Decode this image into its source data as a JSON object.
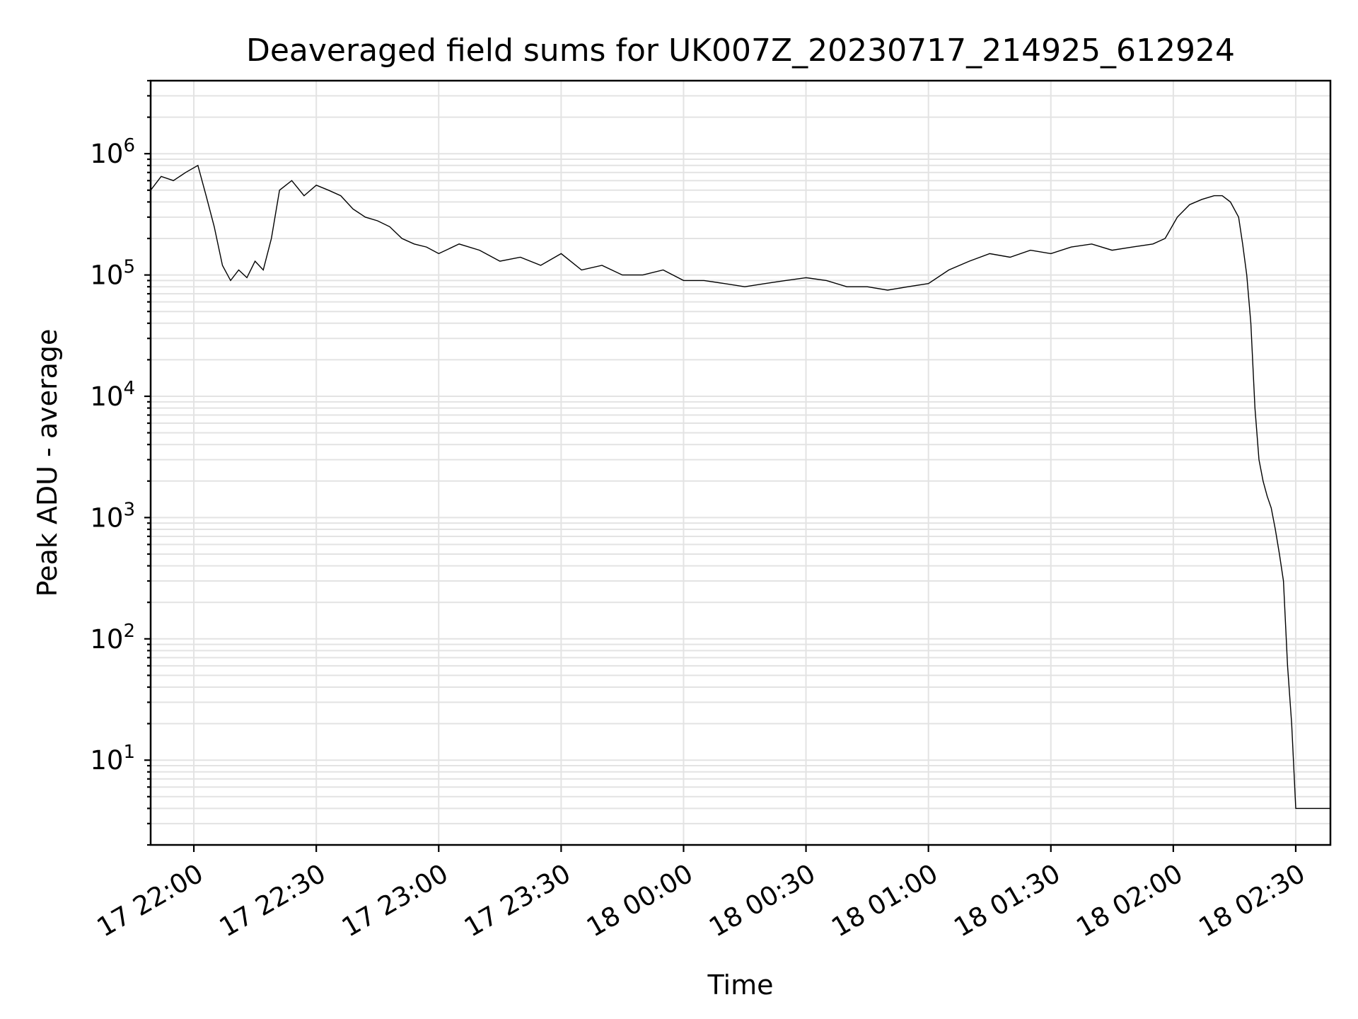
{
  "chart_data": {
    "type": "line",
    "title": "Deaveraged field sums for UK007Z_20230717_214925_612924",
    "xlabel": "Time",
    "ylabel": "Peak ADU - average",
    "yscale": "log",
    "ylim": [
      2,
      4000000
    ],
    "xlim": [
      "2023-07-17 21:49:25",
      "2023-07-18 02:38:30"
    ],
    "grid": true,
    "x_ticks": [
      {
        "time": "2023-07-17 22:00",
        "label": "17 22:00"
      },
      {
        "time": "2023-07-17 22:30",
        "label": "17 22:30"
      },
      {
        "time": "2023-07-17 23:00",
        "label": "17 23:00"
      },
      {
        "time": "2023-07-17 23:30",
        "label": "17 23:30"
      },
      {
        "time": "2023-07-18 00:00",
        "label": "18 00:00"
      },
      {
        "time": "2023-07-18 00:30",
        "label": "18 00:30"
      },
      {
        "time": "2023-07-18 01:00",
        "label": "18 01:00"
      },
      {
        "time": "2023-07-18 01:30",
        "label": "18 01:30"
      },
      {
        "time": "2023-07-18 02:00",
        "label": "18 02:00"
      },
      {
        "time": "2023-07-18 02:30",
        "label": "18 02:30"
      }
    ],
    "y_ticks": [
      {
        "value": 10,
        "base": "10",
        "exp": "1"
      },
      {
        "value": 100,
        "base": "10",
        "exp": "2"
      },
      {
        "value": 1000,
        "base": "10",
        "exp": "3"
      },
      {
        "value": 10000,
        "base": "10",
        "exp": "4"
      },
      {
        "value": 100000,
        "base": "10",
        "exp": "5"
      },
      {
        "value": 1000000,
        "base": "10",
        "exp": "6"
      }
    ],
    "series": [
      {
        "color": "#000000",
        "x": [
          "2023-07-17 21:49:25",
          "2023-07-17 21:52:00",
          "2023-07-17 21:55:00",
          "2023-07-17 21:58:00",
          "2023-07-17 22:01:00",
          "2023-07-17 22:03:00",
          "2023-07-17 22:05:00",
          "2023-07-17 22:07:00",
          "2023-07-17 22:09:00",
          "2023-07-17 22:11:00",
          "2023-07-17 22:13:00",
          "2023-07-17 22:15:00",
          "2023-07-17 22:17:00",
          "2023-07-17 22:19:00",
          "2023-07-17 22:21:00",
          "2023-07-17 22:24:00",
          "2023-07-17 22:27:00",
          "2023-07-17 22:30:00",
          "2023-07-17 22:33:00",
          "2023-07-17 22:36:00",
          "2023-07-17 22:39:00",
          "2023-07-17 22:42:00",
          "2023-07-17 22:45:00",
          "2023-07-17 22:48:00",
          "2023-07-17 22:51:00",
          "2023-07-17 22:54:00",
          "2023-07-17 22:57:00",
          "2023-07-17 23:00:00",
          "2023-07-17 23:05:00",
          "2023-07-17 23:10:00",
          "2023-07-17 23:15:00",
          "2023-07-17 23:20:00",
          "2023-07-17 23:25:00",
          "2023-07-17 23:30:00",
          "2023-07-17 23:35:00",
          "2023-07-17 23:40:00",
          "2023-07-17 23:45:00",
          "2023-07-17 23:50:00",
          "2023-07-17 23:55:00",
          "2023-07-18 00:00:00",
          "2023-07-18 00:05:00",
          "2023-07-18 00:10:00",
          "2023-07-18 00:15:00",
          "2023-07-18 00:20:00",
          "2023-07-18 00:25:00",
          "2023-07-18 00:30:00",
          "2023-07-18 00:35:00",
          "2023-07-18 00:40:00",
          "2023-07-18 00:45:00",
          "2023-07-18 00:50:00",
          "2023-07-18 00:55:00",
          "2023-07-18 01:00:00",
          "2023-07-18 01:05:00",
          "2023-07-18 01:10:00",
          "2023-07-18 01:15:00",
          "2023-07-18 01:20:00",
          "2023-07-18 01:25:00",
          "2023-07-18 01:30:00",
          "2023-07-18 01:35:00",
          "2023-07-18 01:40:00",
          "2023-07-18 01:45:00",
          "2023-07-18 01:50:00",
          "2023-07-18 01:55:00",
          "2023-07-18 01:58:00",
          "2023-07-18 02:01:00",
          "2023-07-18 02:04:00",
          "2023-07-18 02:07:00",
          "2023-07-18 02:10:00",
          "2023-07-18 02:12:00",
          "2023-07-18 02:14:00",
          "2023-07-18 02:16:00",
          "2023-07-18 02:17:00",
          "2023-07-18 02:18:00",
          "2023-07-18 02:19:00",
          "2023-07-18 02:20:00",
          "2023-07-18 02:21:00",
          "2023-07-18 02:22:00",
          "2023-07-18 02:23:00",
          "2023-07-18 02:24:00",
          "2023-07-18 02:25:00",
          "2023-07-18 02:26:00",
          "2023-07-18 02:27:00",
          "2023-07-18 02:28:00",
          "2023-07-18 02:29:00",
          "2023-07-18 02:30:00",
          "2023-07-18 02:30:30",
          "2023-07-18 02:31:00",
          "2023-07-18 02:34:00",
          "2023-07-18 02:38:30"
        ],
        "y": [
          500000,
          650000,
          600000,
          700000,
          800000,
          450000,
          250000,
          120000,
          90000,
          110000,
          95000,
          130000,
          110000,
          200000,
          500000,
          600000,
          450000,
          550000,
          500000,
          450000,
          350000,
          300000,
          280000,
          250000,
          200000,
          180000,
          170000,
          150000,
          180000,
          160000,
          130000,
          140000,
          120000,
          150000,
          110000,
          120000,
          100000,
          100000,
          110000,
          90000,
          90000,
          85000,
          80000,
          85000,
          90000,
          95000,
          90000,
          80000,
          80000,
          75000,
          80000,
          85000,
          110000,
          130000,
          150000,
          140000,
          160000,
          150000,
          170000,
          180000,
          160000,
          170000,
          180000,
          200000,
          300000,
          380000,
          420000,
          450000,
          450000,
          400000,
          300000,
          180000,
          100000,
          40000,
          8000,
          3000,
          2000,
          1500,
          1200,
          800,
          500,
          300,
          60,
          20,
          4,
          4,
          4,
          4,
          4
        ]
      }
    ]
  }
}
